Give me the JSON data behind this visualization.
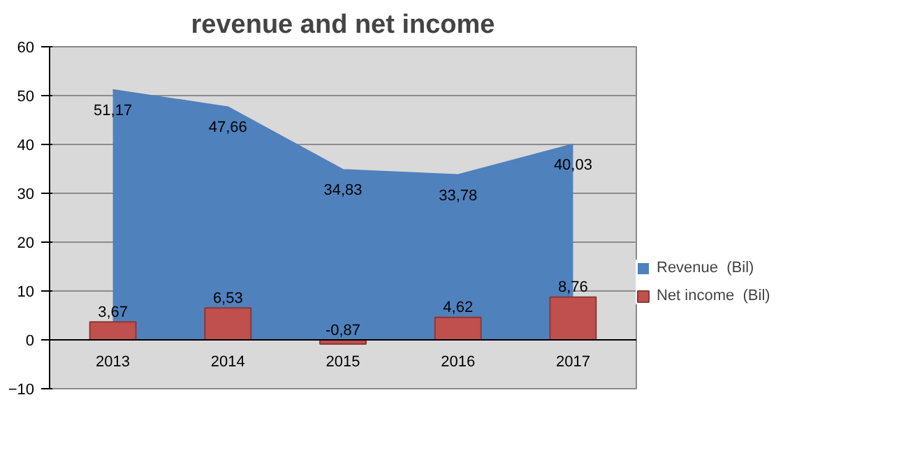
{
  "chart_data": {
    "type": "bar",
    "title": "revenue and net income",
    "categories": [
      "2013",
      "2014",
      "2015",
      "2016",
      "2017"
    ],
    "series": [
      {
        "name": "Revenue  (Bil)",
        "type": "area",
        "color": "#4f81bd",
        "values": [
          51.17,
          47.66,
          34.83,
          33.78,
          40.03
        ],
        "value_labels": [
          "51,17",
          "47,66",
          "34,83",
          "33,78",
          "40,03"
        ]
      },
      {
        "name": "Net income  (Bil)",
        "color": "#c0504d",
        "values": [
          3.67,
          6.53,
          -0.87,
          4.62,
          8.76
        ],
        "value_labels": [
          "3,67",
          "6,53",
          "-0,87",
          "4,62",
          "8,76"
        ]
      }
    ],
    "ylim": [
      -10,
      60
    ],
    "yticks": [
      -10,
      0,
      10,
      20,
      30,
      40,
      50,
      60
    ],
    "grid": "y",
    "legend": "right"
  }
}
